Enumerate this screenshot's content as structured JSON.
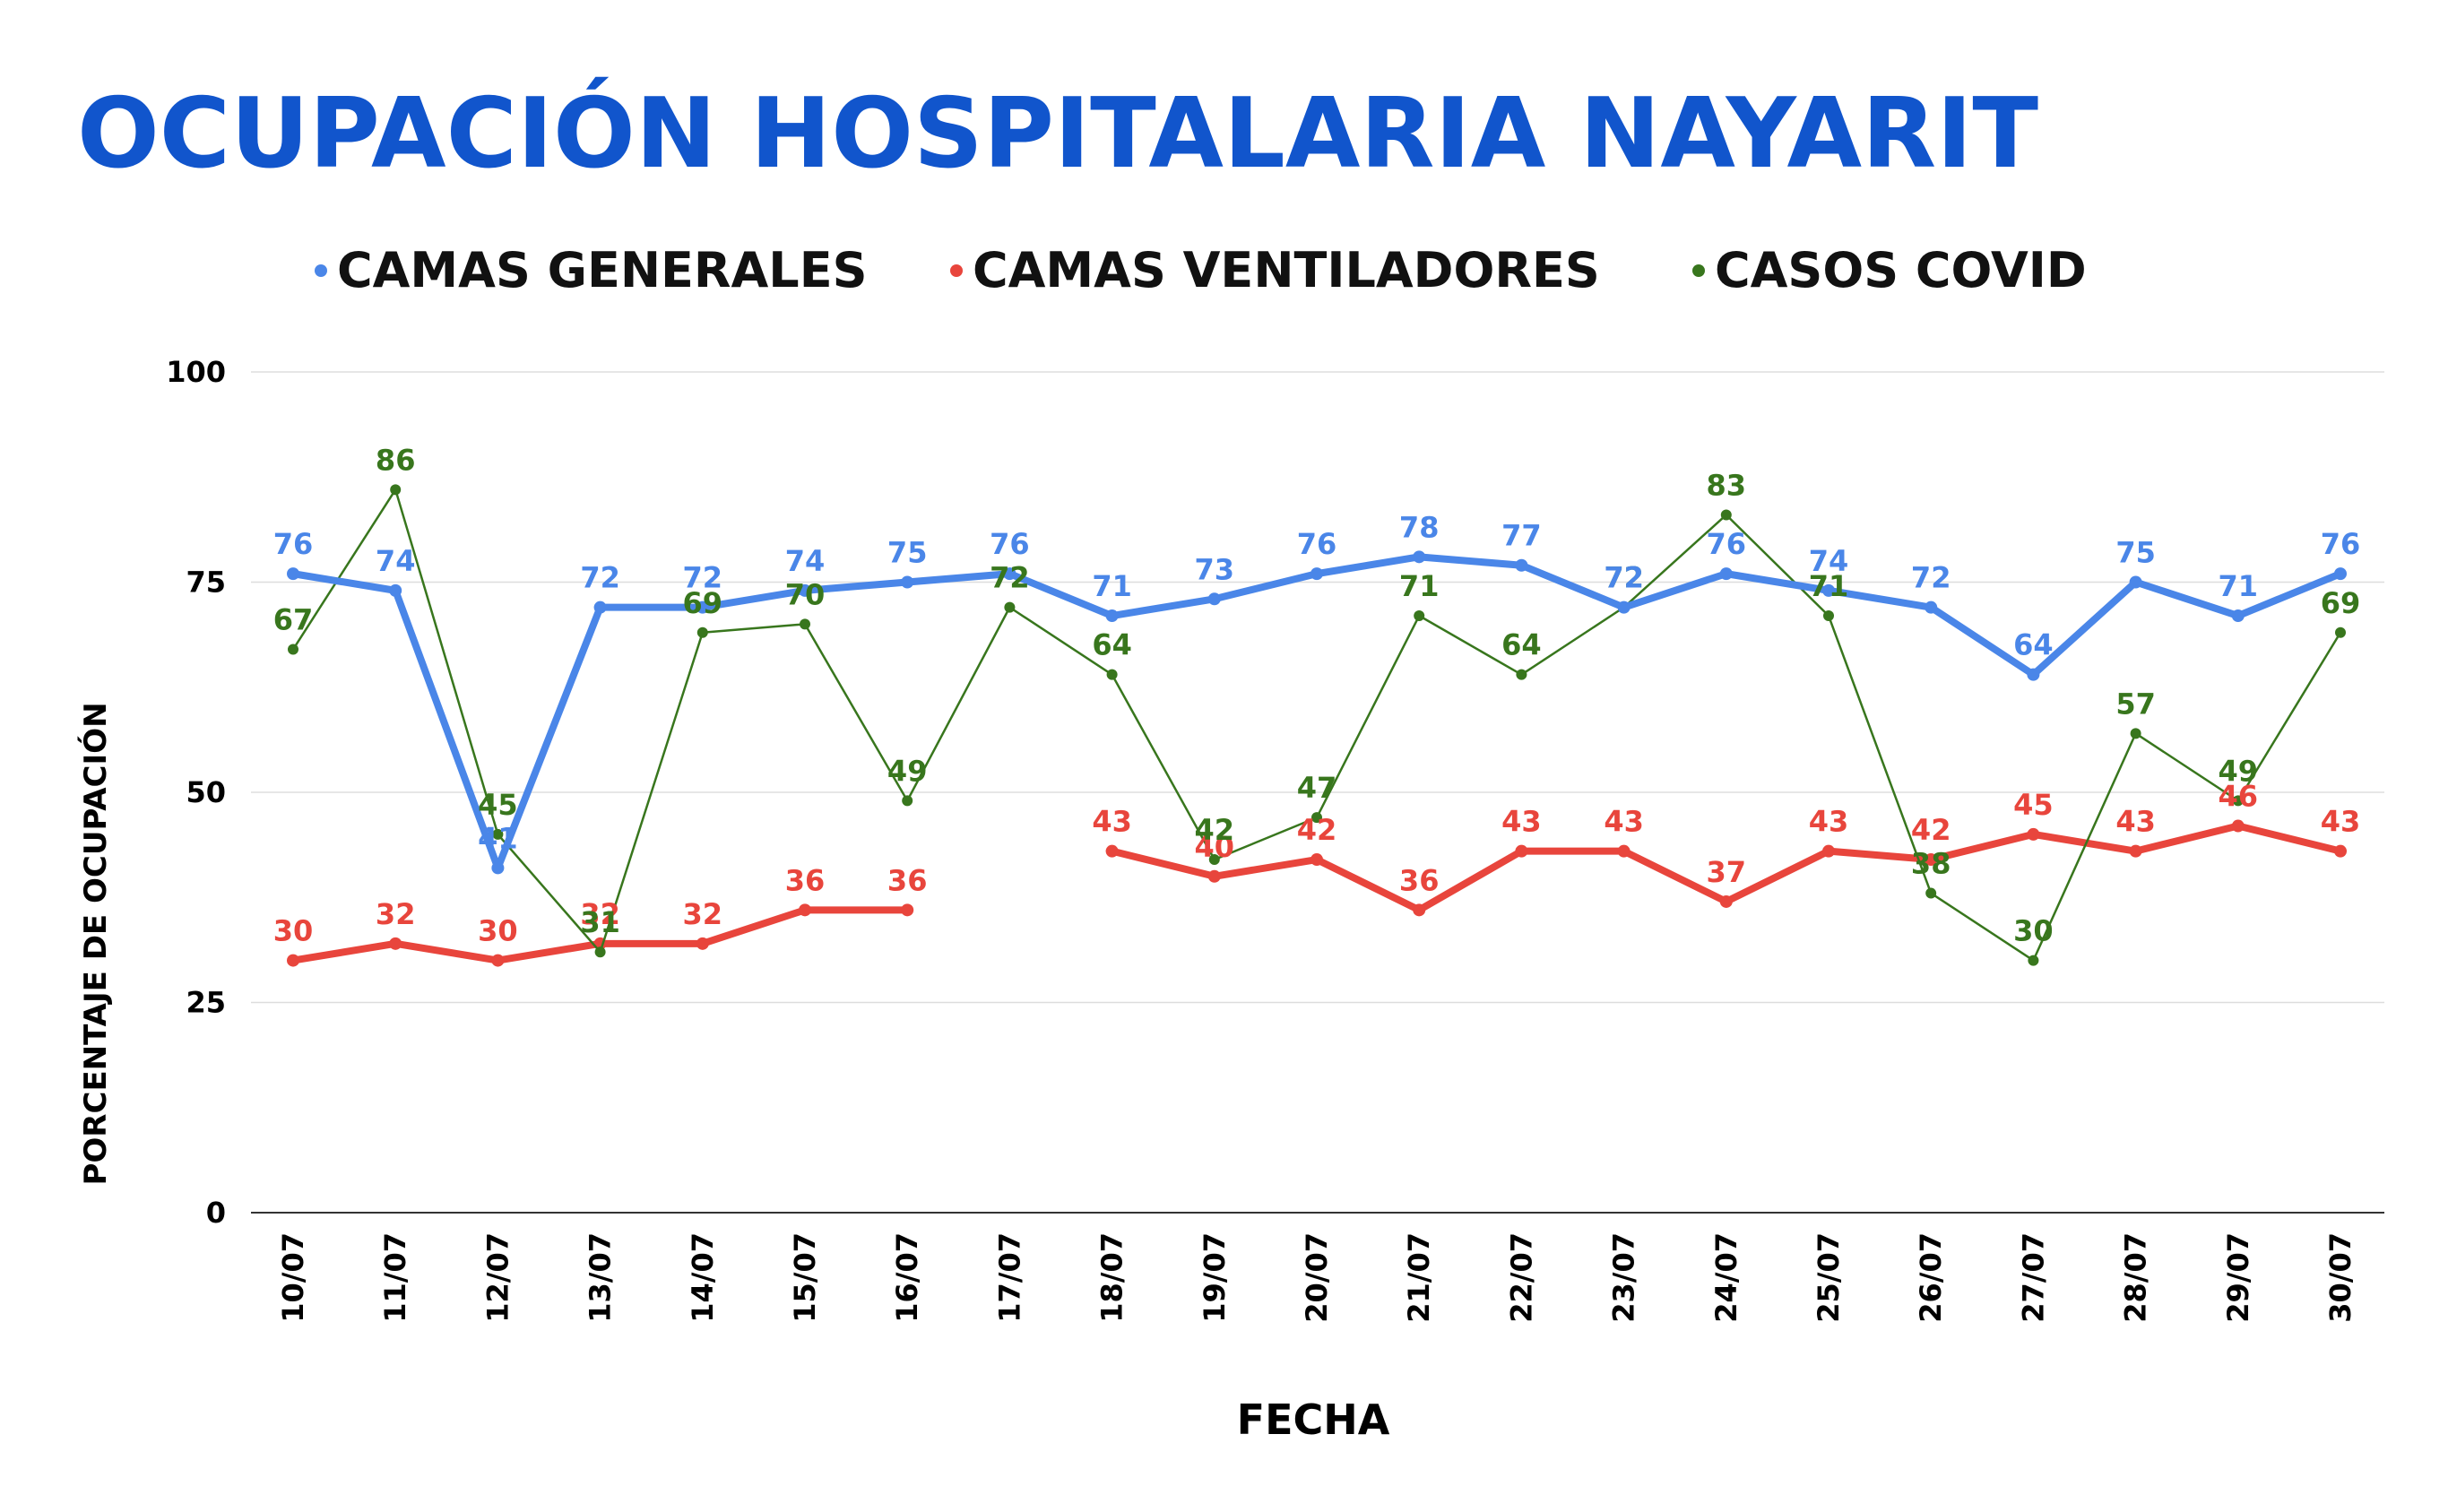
{
  "chart_data": {
    "type": "line",
    "title": "OCUPACIÓN HOSPITALARIA NAYARIT",
    "xlabel": "FECHA",
    "ylabel": "PORCENTAJE DE OCUPACIÓN",
    "ylim": [
      0,
      100
    ],
    "yticks": [
      0,
      25,
      50,
      75,
      100
    ],
    "grid": true,
    "legend_position": "top",
    "categories": [
      "10/07",
      "11/07",
      "12/07",
      "13/07",
      "14/07",
      "15/07",
      "16/07",
      "17/07",
      "18/07",
      "19/07",
      "20/07",
      "21/07",
      "22/07",
      "23/07",
      "24/07",
      "25/07",
      "26/07",
      "27/07",
      "28/07",
      "29/07",
      "30/07"
    ],
    "series": [
      {
        "name": "CAMAS GENERALES",
        "color": "#4a86e8",
        "values": [
          76,
          74,
          41,
          72,
          72,
          74,
          75,
          76,
          71,
          73,
          76,
          78,
          77,
          72,
          76,
          74,
          72,
          64,
          75,
          71,
          76
        ]
      },
      {
        "name": "CAMAS VENTILADORES",
        "color": "#e8453c",
        "values": [
          30,
          32,
          30,
          32,
          32,
          36,
          36,
          null,
          43,
          40,
          42,
          36,
          43,
          43,
          37,
          43,
          42,
          45,
          43,
          46,
          43
        ]
      },
      {
        "name": "CASOS COVID",
        "color": "#38761d",
        "values": [
          67,
          86,
          45,
          31,
          69,
          70,
          49,
          72,
          64,
          42,
          47,
          71,
          64,
          72,
          83,
          71,
          38,
          30,
          57,
          49,
          69
        ]
      }
    ]
  }
}
